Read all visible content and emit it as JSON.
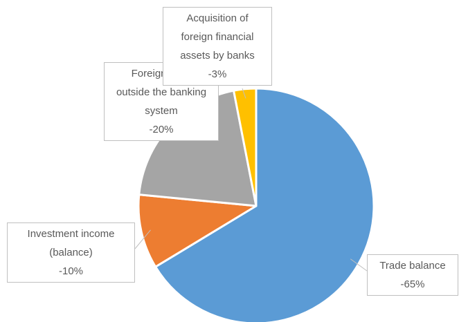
{
  "chart_data": {
    "type": "pie",
    "categories": [
      "Trade balance",
      "Investment income (balance)",
      "Foreign cash outside the banking system",
      "Acquisition of foreign financial assets by banks"
    ],
    "values": [
      -65,
      -10,
      -20,
      -3
    ],
    "value_labels": [
      "-65%",
      "-10%",
      "-20%",
      "-3%"
    ],
    "colors": [
      "#5b9bd5",
      "#ed7d31",
      "#a5a5a5",
      "#ffc000"
    ]
  }
}
